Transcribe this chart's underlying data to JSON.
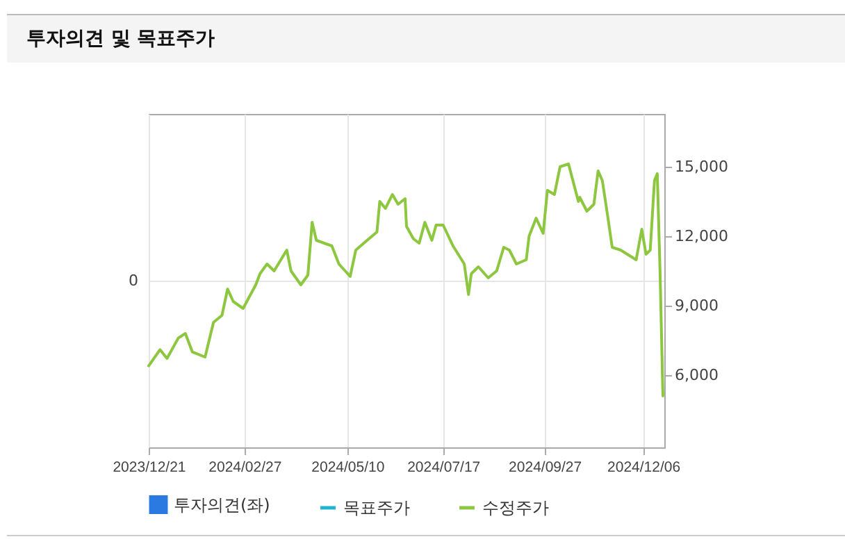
{
  "chart_data": {
    "type": "line",
    "title": "투자의견 및 목표주가",
    "xlim": [
      "2023-12-21",
      "2024-12-21"
    ],
    "xticks": [
      {
        "value": "2023-12-21",
        "label": "2023/12/21"
      },
      {
        "value": "2024-02-27",
        "label": "2024/02/27"
      },
      {
        "value": "2024-05-10",
        "label": "2024/05/10"
      },
      {
        "value": "2024-07-17",
        "label": "2024/07/17"
      },
      {
        "value": "2024-09-27",
        "label": "2024/09/27"
      },
      {
        "value": "2024-12-06",
        "label": "2024/12/06"
      }
    ],
    "annotations": [
      "0"
    ],
    "y2lim": [
      2880,
      17280
    ],
    "y2ticks": [
      {
        "value": 6000,
        "label": "6,000"
      },
      {
        "value": 9000,
        "label": "9,000"
      },
      {
        "value": 12000,
        "label": "12,000"
      },
      {
        "value": 15000,
        "label": "15,000"
      }
    ],
    "grid": true,
    "legend": "bottom",
    "series": [
      {
        "name": "투자의견(좌)",
        "type": "bar",
        "color": "#2a7ae2"
      },
      {
        "name": "목표주가",
        "axis": "y2",
        "color": "#1fb5d0"
      },
      {
        "name": "수정주가",
        "axis": "y2",
        "color": "#8dc63f",
        "x": [
          "2023-12-21",
          "2023-12-29",
          "2024-01-03",
          "2024-01-11",
          "2024-01-16",
          "2024-01-21",
          "2024-01-30",
          "2024-02-05",
          "2024-02-11",
          "2024-02-15",
          "2024-02-19",
          "2024-02-26",
          "2024-03-06",
          "2024-03-09",
          "2024-03-14",
          "2024-03-19",
          "2024-03-28",
          "2024-03-31",
          "2024-04-07",
          "2024-04-12",
          "2024-04-15",
          "2024-04-18",
          "2024-04-29",
          "2024-05-04",
          "2024-05-12",
          "2024-05-16",
          "2024-05-24",
          "2024-05-31",
          "2024-06-02",
          "2024-06-06",
          "2024-06-11",
          "2024-06-15",
          "2024-06-20",
          "2024-06-21",
          "2024-06-26",
          "2024-06-30",
          "2024-07-04",
          "2024-07-09",
          "2024-07-12",
          "2024-07-17",
          "2024-07-24",
          "2024-08-01",
          "2024-08-04",
          "2024-08-06",
          "2024-08-11",
          "2024-08-18",
          "2024-08-24",
          "2024-08-29",
          "2024-09-02",
          "2024-09-07",
          "2024-09-14",
          "2024-09-16",
          "2024-09-21",
          "2024-09-26",
          "2024-09-29",
          "2024-10-04",
          "2024-10-08",
          "2024-10-14",
          "2024-10-21",
          "2024-10-22",
          "2024-10-27",
          "2024-11-01",
          "2024-11-04",
          "2024-11-07",
          "2024-11-11",
          "2024-11-14",
          "2024-11-20",
          "2024-12-01",
          "2024-12-05",
          "2024-12-08",
          "2024-12-11",
          "2024-12-14",
          "2024-12-16",
          "2024-12-18",
          "2024-12-20"
        ],
        "values": [
          6400,
          7100,
          6720,
          7600,
          7800,
          7000,
          6780,
          8280,
          8580,
          9720,
          9180,
          8880,
          9900,
          10380,
          10800,
          10500,
          11400,
          10500,
          9900,
          10320,
          12600,
          11820,
          11580,
          10800,
          10260,
          11400,
          11820,
          12180,
          13500,
          13200,
          13800,
          13380,
          13620,
          12420,
          11880,
          11700,
          12600,
          11820,
          12480,
          12480,
          11580,
          10800,
          9480,
          10380,
          10680,
          10200,
          10500,
          11520,
          11400,
          10800,
          10980,
          12000,
          12780,
          12120,
          13980,
          13800,
          15000,
          15120,
          13500,
          13680,
          13080,
          13380,
          14820,
          14400,
          12780,
          11520,
          11400,
          10980,
          12300,
          11220,
          11400,
          14400,
          14700,
          10380,
          5100
        ]
      }
    ]
  }
}
